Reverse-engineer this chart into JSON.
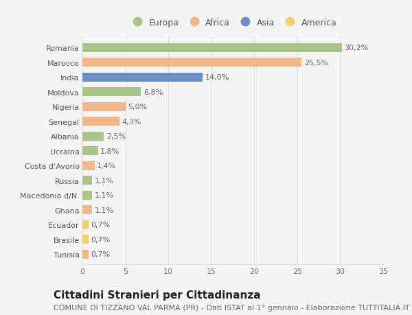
{
  "countries": [
    "Romania",
    "Marocco",
    "India",
    "Moldova",
    "Nigeria",
    "Senegal",
    "Albania",
    "Ucraina",
    "Costa d'Avorio",
    "Russia",
    "Macedonia d/N.",
    "Ghana",
    "Ecuador",
    "Brasile",
    "Tunisia"
  ],
  "values": [
    30.2,
    25.5,
    14.0,
    6.8,
    5.0,
    4.3,
    2.5,
    1.8,
    1.4,
    1.1,
    1.1,
    1.1,
    0.7,
    0.7,
    0.7
  ],
  "labels": [
    "30,2%",
    "25,5%",
    "14,0%",
    "6,8%",
    "5,0%",
    "4,3%",
    "2,5%",
    "1,8%",
    "1,4%",
    "1,1%",
    "1,1%",
    "1,1%",
    "0,7%",
    "0,7%",
    "0,7%"
  ],
  "continents": [
    "Europa",
    "Africa",
    "Asia",
    "Europa",
    "Africa",
    "Africa",
    "Europa",
    "Europa",
    "Africa",
    "Europa",
    "Europa",
    "Africa",
    "America",
    "America",
    "Africa"
  ],
  "continent_colors": {
    "Europa": "#a8c48a",
    "Africa": "#f0b88a",
    "Asia": "#6b8ec4",
    "America": "#f0d070"
  },
  "legend_order": [
    "Europa",
    "Africa",
    "Asia",
    "America"
  ],
  "title": "Cittadini Stranieri per Cittadinanza",
  "subtitle": "COMUNE DI TIZZANO VAL PARMA (PR) - Dati ISTAT al 1° gennaio - Elaborazione TUTTITALIA.IT",
  "xlim": [
    0,
    35
  ],
  "xticks": [
    0,
    5,
    10,
    15,
    20,
    25,
    30,
    35
  ],
  "background_color": "#f5f5f5",
  "grid_color": "#dddddd",
  "bar_height": 0.6,
  "title_fontsize": 11,
  "subtitle_fontsize": 8,
  "label_fontsize": 8,
  "tick_fontsize": 8,
  "legend_fontsize": 9
}
